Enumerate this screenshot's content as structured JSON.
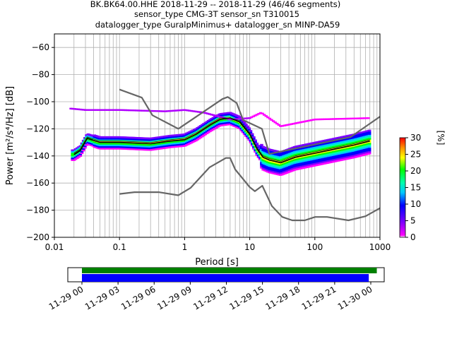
{
  "title": {
    "line1": "BK.BK64.00.HHE   2018-11-29 -- 2018-11-29  (46/46 segments)",
    "line2": "sensor_type CMG-3T sensor_sn T310015",
    "line3": "datalogger_type GuralpMinimus+ datalogger_sn MINP-DA59"
  },
  "chart_data": [
    {
      "type": "heatmap",
      "title": "BK.BK64.00.HHE   2018-11-29 -- 2018-11-29  (46/46 segments)",
      "xlabel": "Period [s]",
      "ylabel": "Power [m²/s⁴/Hz] [dB]",
      "x_scale": "log",
      "xlim": [
        0.01,
        1000
      ],
      "ylim": [
        -200,
        -50
      ],
      "x_ticks": [
        "0.01",
        "0.1",
        "1",
        "10",
        "100",
        "1000"
      ],
      "y_ticks": [
        "-60",
        "-80",
        "-100",
        "-120",
        "-140",
        "-160",
        "-180",
        "-200"
      ],
      "grid": true,
      "colorbar": {
        "label": "[%]",
        "range": [
          0,
          30
        ],
        "ticks": [
          "0",
          "5",
          "10",
          "15",
          "20",
          "25",
          "30"
        ]
      },
      "noise_model_high": {
        "period": [
          0.1,
          0.22,
          0.32,
          0.8,
          3.8,
          4.6,
          6.3,
          7.9,
          15.4,
          20,
          354.8,
          1000
        ],
        "power": [
          -91,
          -97,
          -110,
          -120,
          -98,
          -96.5,
          -101,
          -113.5,
          -120,
          -138.5,
          -126,
          -111
        ]
      },
      "noise_model_low": {
        "period": [
          0.1,
          0.17,
          0.4,
          0.8,
          1.24,
          2.4,
          4.3,
          5.0,
          6.0,
          10,
          12,
          15.6,
          21.9,
          31.6,
          45,
          70,
          101,
          154,
          328,
          600,
          1000
        ],
        "power": [
          -168,
          -166.7,
          -166.7,
          -169,
          -163.5,
          -148.5,
          -141.5,
          -141.5,
          -150,
          -163,
          -166,
          -162,
          -177,
          -185,
          -187.5,
          -187.5,
          -185,
          -185,
          -187.5,
          -184.5,
          -178.5
        ]
      },
      "mode": {
        "period": [
          0.02,
          0.025,
          0.032,
          0.05,
          0.1,
          0.3,
          0.6,
          1.0,
          1.5,
          2.5,
          3.5,
          5.0,
          7.0,
          10,
          13,
          16,
          20,
          30,
          50,
          100,
          200,
          400,
          700
        ],
        "power": [
          -139,
          -136,
          -127,
          -130,
          -130,
          -131,
          -129,
          -128,
          -124,
          -117,
          -113,
          -112,
          -115,
          -124,
          -135,
          -141,
          -143,
          -145,
          -141,
          -138,
          -135,
          -132,
          -129
        ]
      },
      "mean": {
        "period": [
          0.02,
          0.025,
          0.032,
          0.05,
          0.1,
          0.3,
          0.6,
          1.0,
          1.5,
          2.5,
          3.5,
          5.0,
          7.0,
          10,
          13,
          16,
          20,
          30,
          50,
          100,
          200,
          400,
          700
        ],
        "power": [
          -138,
          -135,
          -126,
          -129,
          -129,
          -130,
          -128,
          -127,
          -123,
          -116,
          -112,
          -112,
          -114,
          -123,
          -134,
          -140,
          -142,
          -144,
          -140,
          -137,
          -134,
          -131,
          -128
        ]
      },
      "outlier_band": {
        "period": [
          0.018,
          0.03,
          0.05,
          0.1,
          0.5,
          1.0,
          2.0,
          5.0,
          10,
          15,
          30,
          100,
          700
        ],
        "power": [
          -105,
          -106,
          -106,
          -106,
          -107,
          -106,
          -108,
          -113,
          -112,
          -108,
          -118,
          -113,
          -112
        ]
      }
    },
    {
      "type": "timeline",
      "x_ticks": [
        "11-29 00",
        "11-29 03",
        "11-29 06",
        "11-29 09",
        "11-29 12",
        "11-29 15",
        "11-29 18",
        "11-29 21",
        "11-30 00"
      ],
      "bars": [
        {
          "start": "11-29 00:00",
          "end": "11-30 00:30",
          "color": "#008000"
        },
        {
          "start": "11-29 00:00",
          "end": "11-29 23:50",
          "color": "#0000ff"
        }
      ]
    }
  ]
}
